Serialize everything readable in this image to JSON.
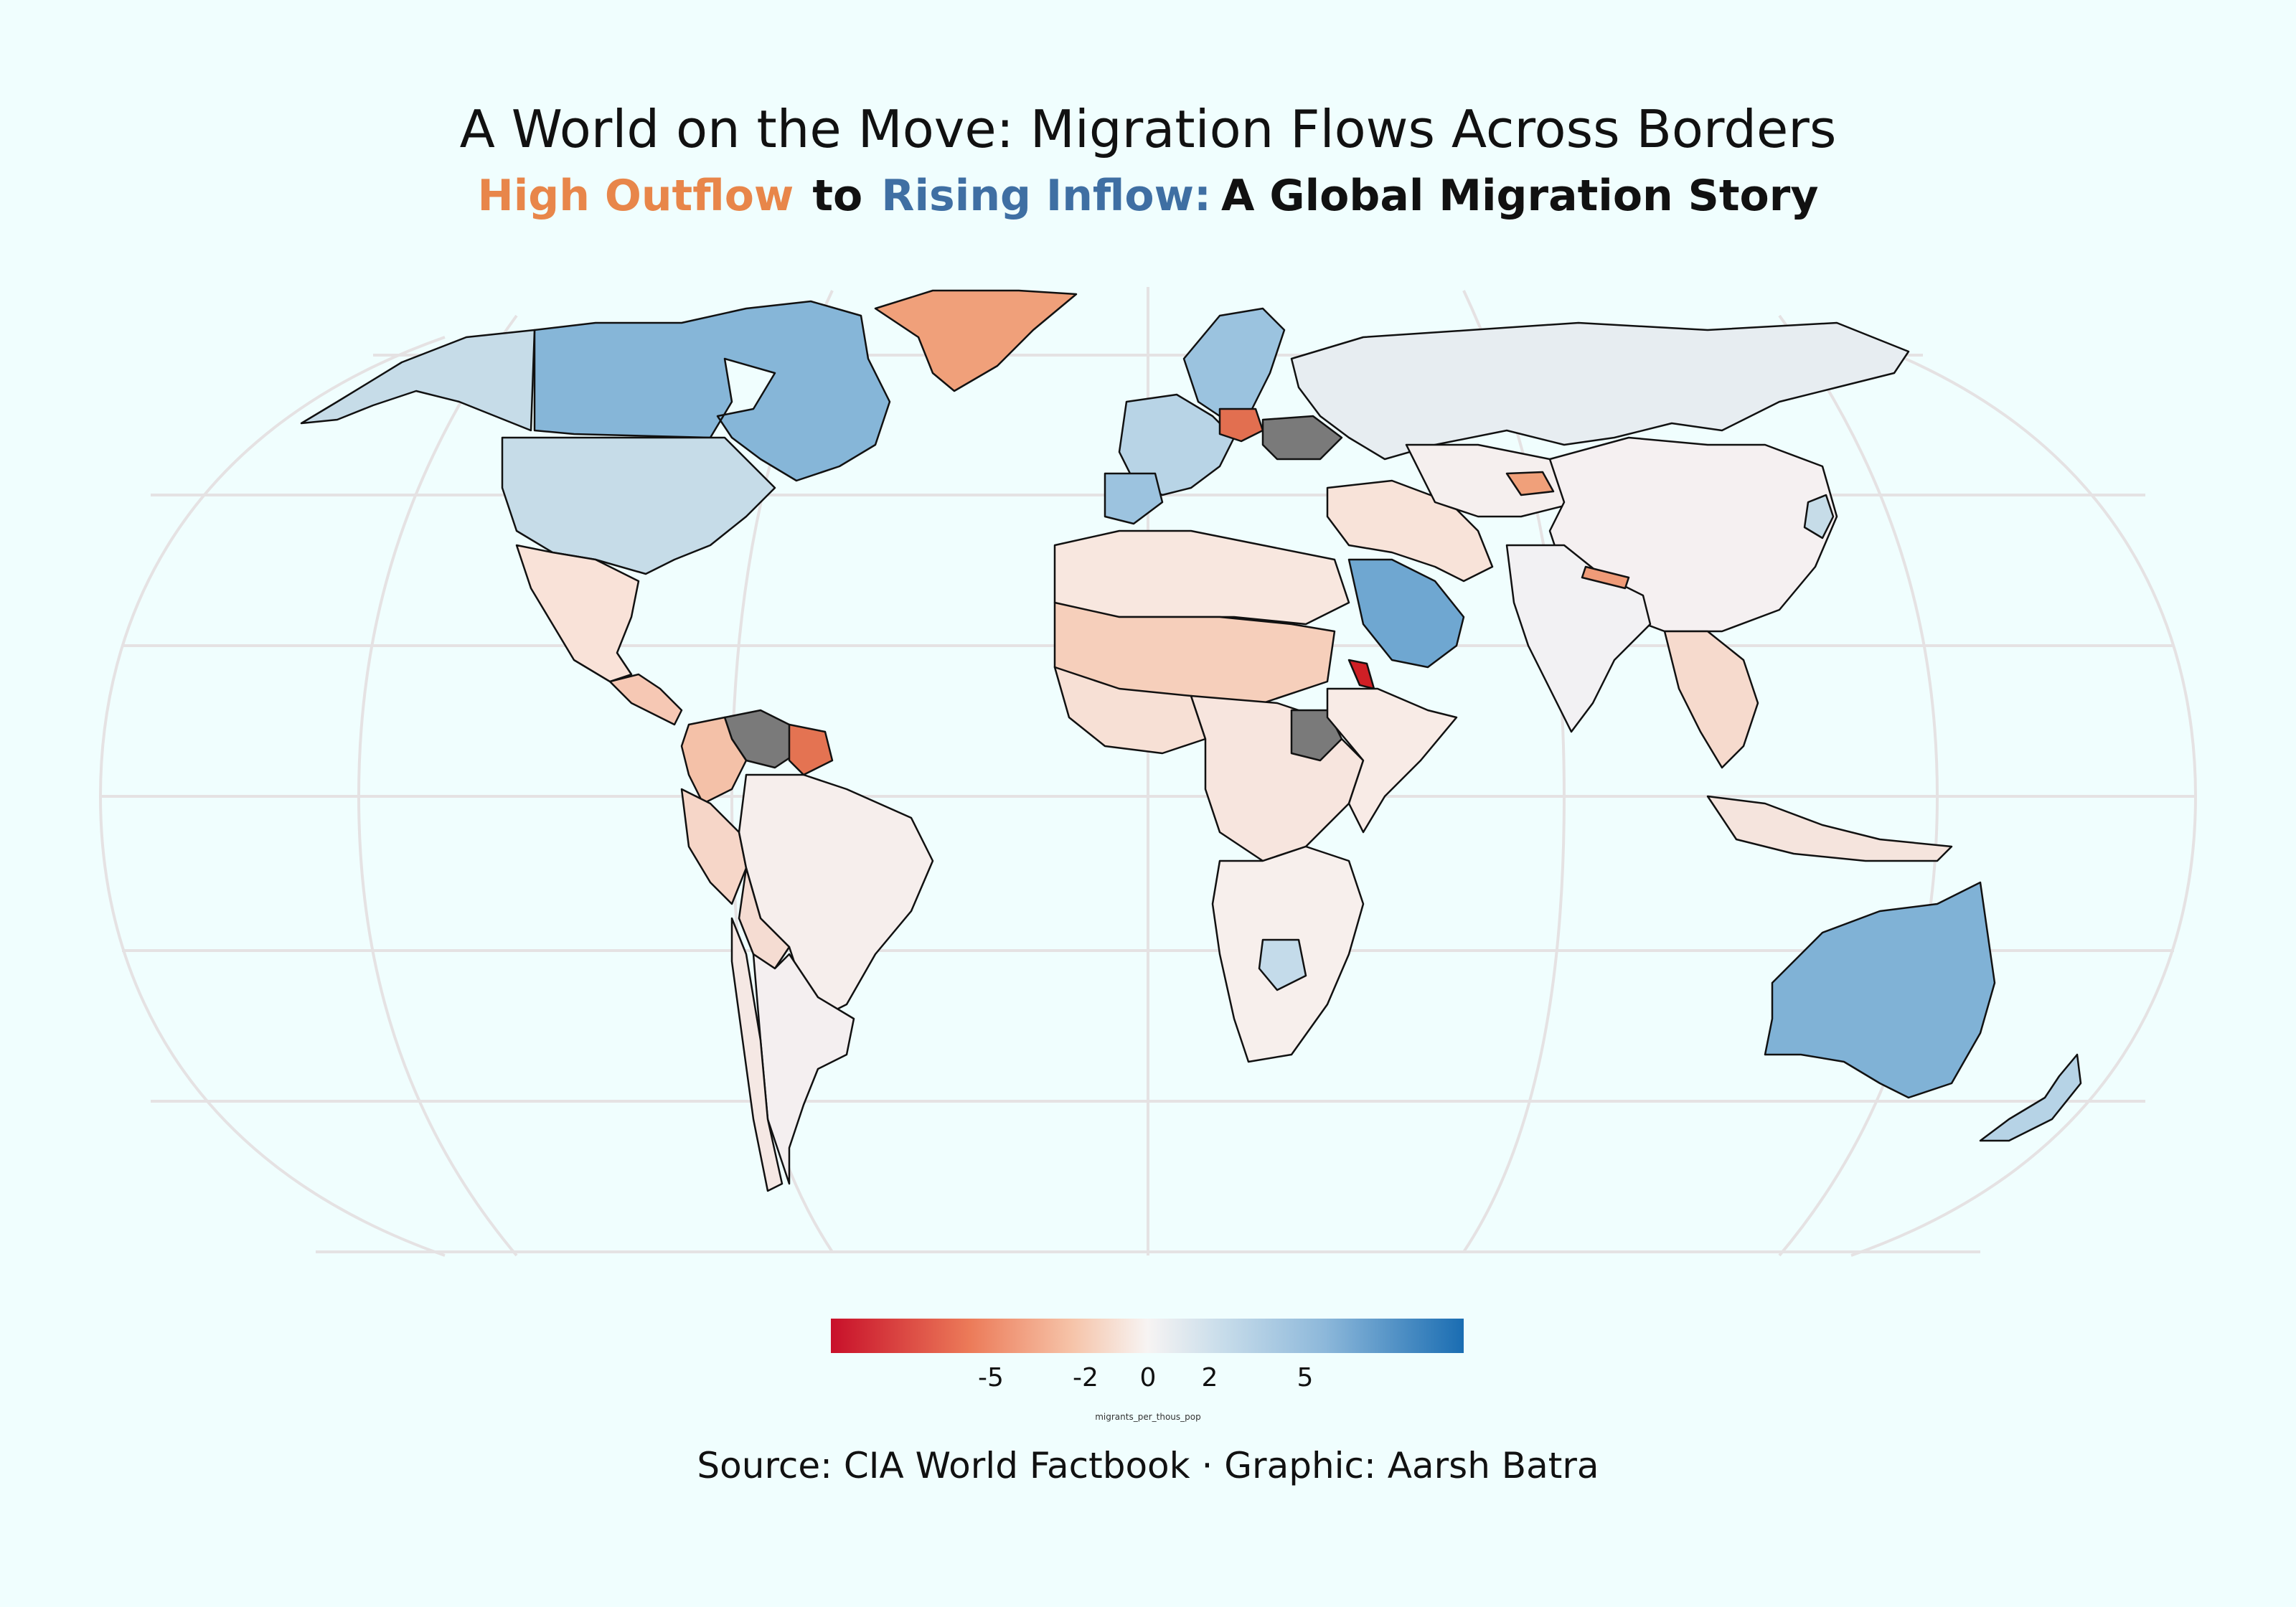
{
  "title": "A World on the Move: Migration Flows Across Borders",
  "subtitle": {
    "outflow": "High Outflow",
    "connector": "to",
    "inflow": "Rising Inflow:",
    "rest": "A Global Migration Story"
  },
  "legend": {
    "ticks": [
      "-5",
      "-2",
      "0",
      "2",
      "5"
    ],
    "title": "migrants_per_thous_pop",
    "range": [
      -10,
      10
    ]
  },
  "source": "Source: CIA World Factbook · Graphic: Aarsh Batra",
  "colors": {
    "background": "#f0fefe",
    "outflow_title": "#e8864a",
    "inflow_title": "#3f6fa3",
    "no_data": "#7a7a7a"
  },
  "regions": [
    {
      "name": "Canada",
      "fill": "#86b6d8"
    },
    {
      "name": "Alaska",
      "fill": "#c6dce8"
    },
    {
      "name": "United States",
      "fill": "#c6dce8"
    },
    {
      "name": "Greenland",
      "fill": "#f0a07a"
    },
    {
      "name": "Mexico",
      "fill": "#f9e2d8"
    },
    {
      "name": "Central America",
      "fill": "#f6c8b4"
    },
    {
      "name": "Venezuela",
      "fill": "#7a7a7a"
    },
    {
      "name": "Colombia",
      "fill": "#f4c1a8"
    },
    {
      "name": "Peru",
      "fill": "#f6d6c8"
    },
    {
      "name": "Brazil",
      "fill": "#f6eeec"
    },
    {
      "name": "Bolivia",
      "fill": "#f5dcd2"
    },
    {
      "name": "Argentina",
      "fill": "#f4eff0"
    },
    {
      "name": "Chile",
      "fill": "#f5e8e4"
    },
    {
      "name": "Guianas",
      "fill": "#e47352"
    },
    {
      "name": "Russia",
      "fill": "#e7edf1"
    },
    {
      "name": "Scandinavia",
      "fill": "#9bc3df"
    },
    {
      "name": "Western Europe",
      "fill": "#b8d4e6"
    },
    {
      "name": "Poland",
      "fill": "#e26f50"
    },
    {
      "name": "Ukraine",
      "fill": "#7a7a7a"
    },
    {
      "name": "Spain",
      "fill": "#9cc3df"
    },
    {
      "name": "North Africa",
      "fill": "#f8e7df"
    },
    {
      "name": "Sahel",
      "fill": "#f6cfbb"
    },
    {
      "name": "West Africa",
      "fill": "#f7e0d5"
    },
    {
      "name": "Central Africa",
      "fill": "#f7e5de"
    },
    {
      "name": "South Sudan",
      "fill": "#7a7a7a"
    },
    {
      "name": "Eritrea",
      "fill": "#cf1f25"
    },
    {
      "name": "East Africa",
      "fill": "#f8ebe6"
    },
    {
      "name": "Southern Africa",
      "fill": "#f7efec"
    },
    {
      "name": "Botswana",
      "fill": "#c4dbea"
    },
    {
      "name": "Saudi Arabia",
      "fill": "#6fa7d1"
    },
    {
      "name": "Middle East",
      "fill": "#f8e3d9"
    },
    {
      "name": "Central Asia",
      "fill": "#f5efee"
    },
    {
      "name": "Kyrgyzstan",
      "fill": "#f0a07a"
    },
    {
      "name": "China",
      "fill": "#f5f0f1"
    },
    {
      "name": "India",
      "fill": "#f2f1f3"
    },
    {
      "name": "Nepal",
      "fill": "#ef9b78"
    },
    {
      "name": "Southeast Asia",
      "fill": "#f6dacd"
    },
    {
      "name": "Japan",
      "fill": "#c6dce8"
    },
    {
      "name": "Indonesia",
      "fill": "#f5e4dd"
    },
    {
      "name": "Australia",
      "fill": "#80b2d6"
    },
    {
      "name": "New Zealand",
      "fill": "#b6d3e6"
    }
  ]
}
